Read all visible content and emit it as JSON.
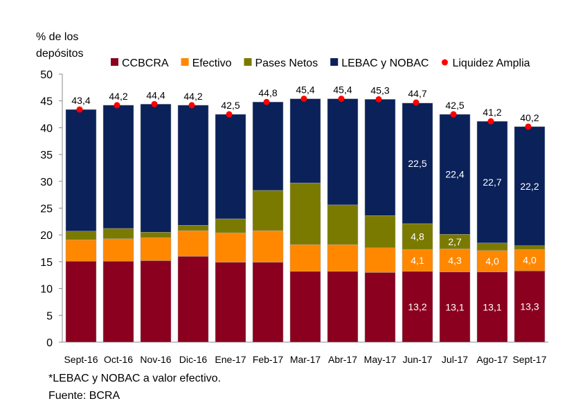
{
  "chart_data": {
    "type": "bar",
    "stacked": true,
    "ylabel": "% de los depósitos",
    "ylim": [
      0,
      50
    ],
    "yticks": [
      0,
      5,
      10,
      15,
      20,
      25,
      30,
      35,
      40,
      45,
      50
    ],
    "grid": false,
    "legend_position": "top",
    "categories": [
      "Sept-16",
      "Oct-16",
      "Nov-16",
      "Dic-16",
      "Ene-17",
      "Feb-17",
      "Mar-17",
      "Abr-17",
      "May-17",
      "Jun-17",
      "Jul-17",
      "Ago-17",
      "Sept-17"
    ],
    "series": [
      {
        "name": "CCBCRA",
        "color": "#8A001E",
        "values": [
          15.1,
          15.1,
          15.2,
          16.0,
          14.9,
          14.9,
          13.2,
          13.2,
          13.0,
          13.2,
          13.1,
          13.1,
          13.3
        ]
      },
      {
        "name": "Efectivo",
        "color": "#FF8800",
        "values": [
          4.0,
          4.2,
          4.3,
          4.8,
          5.5,
          5.9,
          5.0,
          5.0,
          4.6,
          4.1,
          4.3,
          4.0,
          4.0
        ]
      },
      {
        "name": "Pases Netos",
        "color": "#7A7A00",
        "values": [
          1.6,
          1.9,
          1.0,
          1.0,
          2.6,
          7.5,
          11.5,
          7.4,
          6.0,
          4.8,
          2.7,
          1.4,
          0.7
        ]
      },
      {
        "name": "LEBAC y NOBAC",
        "color": "#0A215A",
        "values": [
          22.7,
          23.0,
          23.9,
          22.4,
          19.5,
          16.5,
          15.7,
          19.8,
          21.7,
          22.5,
          22.4,
          22.7,
          22.2
        ]
      }
    ],
    "labeled_from_index": 9,
    "line_series": {
      "name": "Liquidez Amplia",
      "color": "#FF0000",
      "values": [
        43.4,
        44.2,
        44.4,
        44.2,
        42.5,
        44.8,
        45.4,
        45.4,
        45.3,
        44.7,
        42.5,
        41.2,
        40.2
      ]
    }
  },
  "notes": {
    "footnote": "*LEBAC y NOBAC a valor efectivo.",
    "source": "Fuente:  BCRA"
  }
}
